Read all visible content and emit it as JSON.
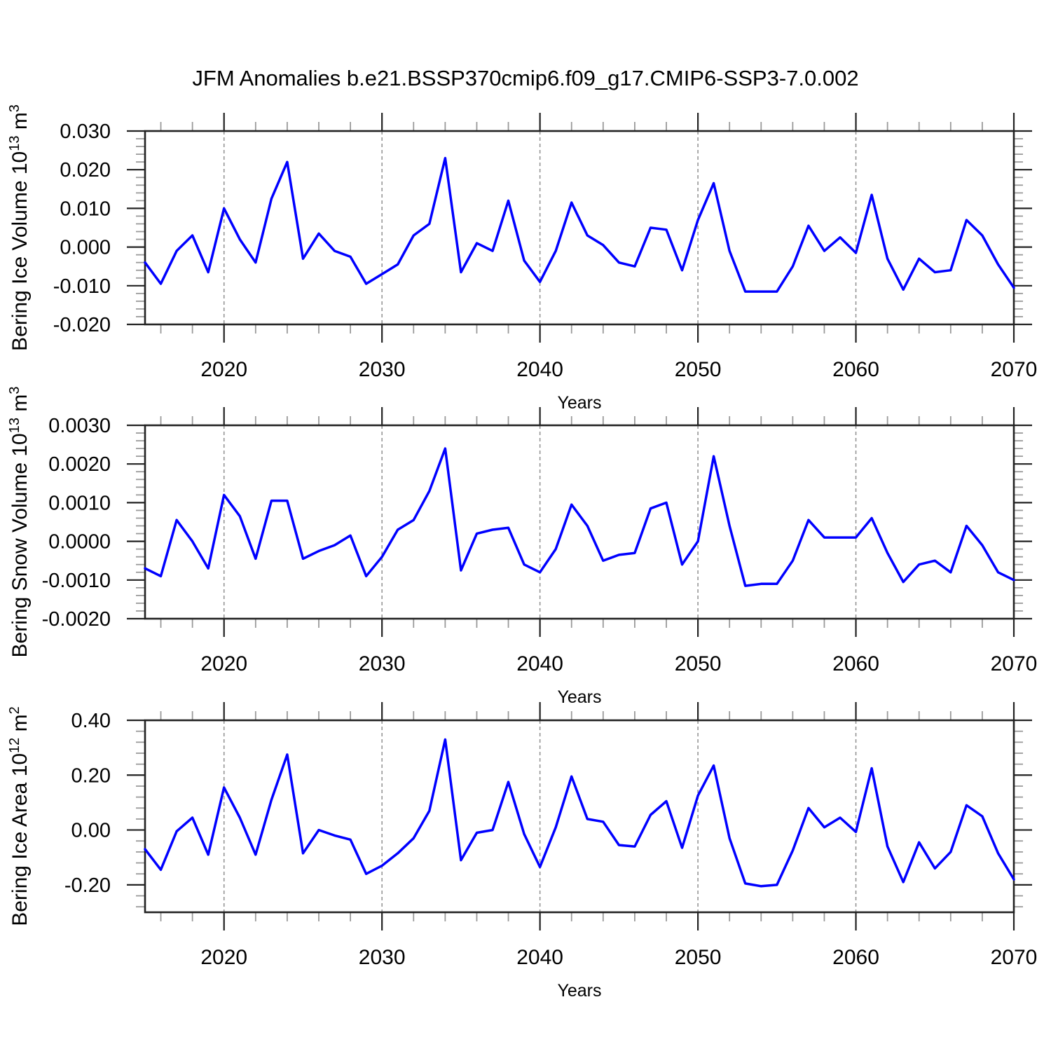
{
  "title": "JFM Anomalies b.e21.BSSP370cmip6.f09_g17.CMIP6-SSP3-7.0.002",
  "line_color": "#0000ff",
  "background": "#ffffff",
  "chart_data": [
    {
      "type": "line",
      "panel": "bering-ice-volume",
      "x_label": "Years",
      "y_label_parts": {
        "prefix": "Bering Ice Volume 10",
        "sup": "13",
        "mid": " m",
        "sup2": "3"
      },
      "xlim": [
        2015,
        2070
      ],
      "ylim": [
        -0.02,
        0.03
      ],
      "x_major_ticks": [
        2020,
        2030,
        2040,
        2050,
        2060,
        2070
      ],
      "x_minor_step": 2,
      "grid_x": [
        2020,
        2030,
        2040,
        2050,
        2060
      ],
      "y_major_ticks": [
        0.03,
        0.02,
        0.01,
        0.0,
        -0.01,
        -0.02
      ],
      "y_tick_labels": [
        "0.030",
        "0.020",
        "0.010",
        "0.000",
        "-0.010",
        "-0.020"
      ],
      "y_minor_step": 0.002,
      "x": [
        2015,
        2016,
        2017,
        2018,
        2019,
        2020,
        2021,
        2022,
        2023,
        2024,
        2025,
        2026,
        2027,
        2028,
        2029,
        2030,
        2031,
        2032,
        2033,
        2034,
        2035,
        2036,
        2037,
        2038,
        2039,
        2040,
        2041,
        2042,
        2043,
        2044,
        2045,
        2046,
        2047,
        2048,
        2049,
        2050,
        2051,
        2052,
        2053,
        2054,
        2055,
        2056,
        2057,
        2058,
        2059,
        2060,
        2061,
        2062,
        2063,
        2064,
        2065,
        2066,
        2067,
        2068,
        2069,
        2070
      ],
      "values": [
        -0.004,
        -0.0095,
        -0.001,
        0.003,
        -0.0065,
        0.01,
        0.002,
        -0.004,
        0.0125,
        0.022,
        -0.003,
        0.0035,
        -0.001,
        -0.0025,
        -0.0095,
        -0.007,
        -0.0045,
        0.003,
        0.006,
        0.023,
        -0.0065,
        0.001,
        -0.001,
        0.012,
        -0.0035,
        -0.009,
        -0.001,
        0.0115,
        0.003,
        0.0005,
        -0.004,
        -0.005,
        0.005,
        0.0045,
        -0.006,
        0.007,
        0.0165,
        -0.001,
        -0.0115,
        -0.0115,
        -0.0115,
        -0.005,
        0.0055,
        -0.001,
        0.0025,
        -0.0015,
        0.0135,
        -0.003,
        -0.011,
        -0.003,
        -0.0065,
        -0.006,
        0.007,
        0.003,
        -0.0045,
        -0.0105
      ]
    },
    {
      "type": "line",
      "panel": "bering-snow-volume",
      "x_label": "Years",
      "y_label_parts": {
        "prefix": "Bering Snow Volume 10",
        "sup": "13",
        "mid": " m",
        "sup2": "3"
      },
      "xlim": [
        2015,
        2070
      ],
      "ylim": [
        -0.002,
        0.003
      ],
      "x_major_ticks": [
        2020,
        2030,
        2040,
        2050,
        2060,
        2070
      ],
      "x_minor_step": 2,
      "grid_x": [
        2020,
        2030,
        2040,
        2050,
        2060
      ],
      "y_major_ticks": [
        0.003,
        0.002,
        0.001,
        0.0,
        -0.001,
        -0.002
      ],
      "y_tick_labels": [
        "0.0030",
        "0.0020",
        "0.0010",
        "0.0000",
        "-0.0010",
        "-0.0020"
      ],
      "y_minor_step": 0.0002,
      "x": [
        2015,
        2016,
        2017,
        2018,
        2019,
        2020,
        2021,
        2022,
        2023,
        2024,
        2025,
        2026,
        2027,
        2028,
        2029,
        2030,
        2031,
        2032,
        2033,
        2034,
        2035,
        2036,
        2037,
        2038,
        2039,
        2040,
        2041,
        2042,
        2043,
        2044,
        2045,
        2046,
        2047,
        2048,
        2049,
        2050,
        2051,
        2052,
        2053,
        2054,
        2055,
        2056,
        2057,
        2058,
        2059,
        2060,
        2061,
        2062,
        2063,
        2064,
        2065,
        2066,
        2067,
        2068,
        2069,
        2070
      ],
      "values": [
        -0.0007,
        -0.0009,
        0.00055,
        0.0,
        -0.0007,
        0.0012,
        0.00065,
        -0.00045,
        0.00105,
        0.00105,
        -0.00045,
        -0.00025,
        -0.0001,
        0.00015,
        -0.0009,
        -0.0004,
        0.0003,
        0.00055,
        0.0013,
        0.0024,
        -0.00075,
        0.0002,
        0.0003,
        0.00035,
        -0.0006,
        -0.0008,
        -0.0002,
        0.00095,
        0.0004,
        -0.0005,
        -0.00035,
        -0.0003,
        0.00085,
        0.001,
        -0.0006,
        0.0,
        0.0022,
        0.0004,
        -0.00115,
        -0.0011,
        -0.0011,
        -0.0005,
        0.00055,
        0.0001,
        0.0001,
        0.0001,
        0.0006,
        -0.0003,
        -0.00105,
        -0.0006,
        -0.0005,
        -0.0008,
        0.0004,
        -0.0001,
        -0.0008,
        -0.001
      ]
    },
    {
      "type": "line",
      "panel": "bering-ice-area",
      "x_label": "Years",
      "y_label_parts": {
        "prefix": "Bering Ice Area 10",
        "sup": "12",
        "mid": " m",
        "sup2": "2"
      },
      "xlim": [
        2015,
        2070
      ],
      "ylim": [
        -0.3,
        0.4
      ],
      "x_major_ticks": [
        2020,
        2030,
        2040,
        2050,
        2060,
        2070
      ],
      "x_minor_step": 2,
      "grid_x": [
        2020,
        2030,
        2040,
        2050,
        2060
      ],
      "y_major_ticks": [
        0.4,
        0.2,
        0.0,
        -0.2
      ],
      "y_tick_labels": [
        "0.40",
        "0.20",
        "0.00",
        "-0.20"
      ],
      "y_minor_step": 0.04,
      "x": [
        2015,
        2016,
        2017,
        2018,
        2019,
        2020,
        2021,
        2022,
        2023,
        2024,
        2025,
        2026,
        2027,
        2028,
        2029,
        2030,
        2031,
        2032,
        2033,
        2034,
        2035,
        2036,
        2037,
        2038,
        2039,
        2040,
        2041,
        2042,
        2043,
        2044,
        2045,
        2046,
        2047,
        2048,
        2049,
        2050,
        2051,
        2052,
        2053,
        2054,
        2055,
        2056,
        2057,
        2058,
        2059,
        2060,
        2061,
        2062,
        2063,
        2064,
        2065,
        2066,
        2067,
        2068,
        2069,
        2070
      ],
      "values": [
        -0.07,
        -0.145,
        -0.005,
        0.045,
        -0.09,
        0.155,
        0.045,
        -0.09,
        0.11,
        0.275,
        -0.085,
        0.0,
        -0.02,
        -0.035,
        -0.16,
        -0.13,
        -0.085,
        -0.03,
        0.07,
        0.33,
        -0.11,
        -0.01,
        0.0,
        0.175,
        -0.015,
        -0.135,
        0.01,
        0.195,
        0.04,
        0.03,
        -0.055,
        -0.06,
        0.055,
        0.105,
        -0.065,
        0.125,
        0.235,
        -0.03,
        -0.195,
        -0.205,
        -0.2,
        -0.075,
        0.08,
        0.01,
        0.045,
        -0.007,
        0.225,
        -0.06,
        -0.19,
        -0.045,
        -0.14,
        -0.08,
        0.09,
        0.05,
        -0.085,
        -0.18
      ]
    }
  ]
}
